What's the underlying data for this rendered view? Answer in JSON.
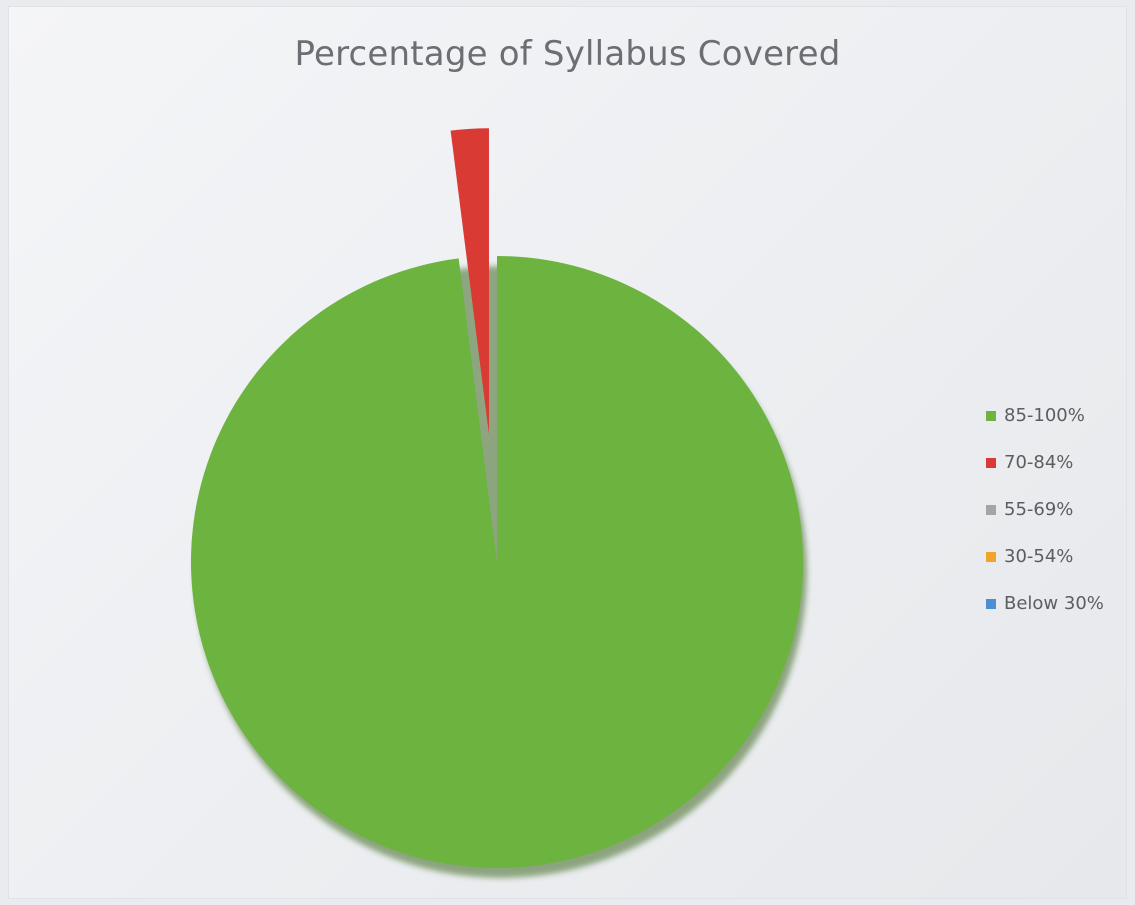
{
  "chart_data": {
    "type": "pie",
    "title": "Percentage of Syllabus Covered",
    "categories": [
      "85-100%",
      "70-84%",
      "55-69%",
      "30-54%",
      "Below 30%"
    ],
    "values": [
      98,
      2,
      0,
      0,
      0
    ],
    "colors": [
      "#6cb33f",
      "#d93a33",
      "#a5a5a5",
      "#f0a52a",
      "#4a8fd1"
    ],
    "exploded_slice": "70-84%",
    "legend_position": "right"
  }
}
